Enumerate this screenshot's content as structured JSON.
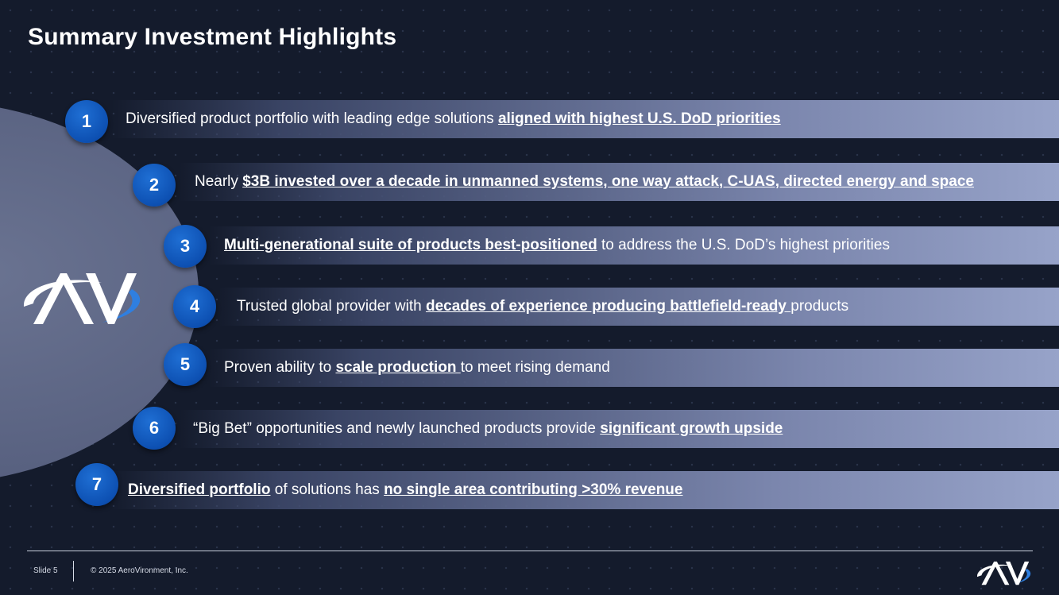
{
  "title": "Summary Investment Highlights",
  "logo": {
    "text": "AV"
  },
  "highlights": [
    {
      "number": "1",
      "segments": [
        {
          "text": "Diversified product portfolio with leading edge solutions ",
          "bold": false
        },
        {
          "text": "aligned with highest U.S. DoD priorities",
          "bold": true
        }
      ]
    },
    {
      "number": "2",
      "segments": [
        {
          "text": "Nearly ",
          "bold": false
        },
        {
          "text": "$3B invested over a decade in unmanned systems, one way attack, C-UAS, directed energy and space",
          "bold": true
        }
      ]
    },
    {
      "number": "3",
      "segments": [
        {
          "text": "Multi-generational suite of products best-positioned",
          "bold": true
        },
        {
          "text": " to address the U.S. DoD’s highest priorities",
          "bold": false
        }
      ]
    },
    {
      "number": "4",
      "segments": [
        {
          "text": "Trusted global provider with ",
          "bold": false
        },
        {
          "text": "decades of experience producing battlefield-ready ",
          "bold": true
        },
        {
          "text": "products",
          "bold": false
        }
      ]
    },
    {
      "number": "5",
      "segments": [
        {
          "text": "Proven ability to ",
          "bold": false
        },
        {
          "text": "scale production ",
          "bold": true
        },
        {
          "text": "to meet rising demand",
          "bold": false
        }
      ]
    },
    {
      "number": "6",
      "segments": [
        {
          "text": "“Big Bet” opportunities and newly launched products provide ",
          "bold": false
        },
        {
          "text": "significant growth upside",
          "bold": true
        }
      ]
    },
    {
      "number": "7",
      "segments": [
        {
          "text": "Diversified portfolio",
          "bold": true
        },
        {
          "text": " of solutions has ",
          "bold": false
        },
        {
          "text": "no single area contributing >30% revenue",
          "bold": true
        }
      ]
    }
  ],
  "footer": {
    "slide_label": "Slide 5",
    "copyright": "© 2025 AeroVironment, Inc."
  },
  "colors": {
    "background": "#141b2c",
    "accent": "#0d50b2",
    "bar_end": "#97a3c9",
    "logo_swoosh": "#2f7fe0"
  }
}
